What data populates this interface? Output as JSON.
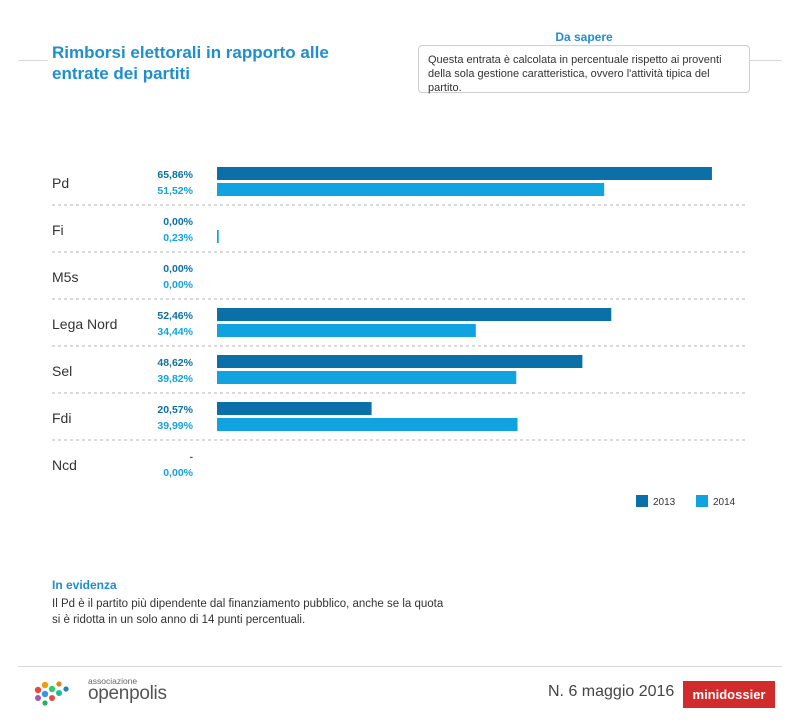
{
  "title": "Rimborsi elettorali in rapporto alle entrate dei partiti",
  "info": {
    "title": "Da sapere",
    "text": "Questa entrata è calcolata in percentuale rispetto ai proventi della sola gestione caratteristica, ovvero l'attività tipica del partito."
  },
  "colors": {
    "2013": "#0c70a8",
    "2014": "#11a3e0",
    "accent": "#1f8ecf",
    "badge": "#d22b2b"
  },
  "chart_data": {
    "type": "bar",
    "orientation": "horizontal",
    "categories": [
      "Pd",
      "Fi",
      "M5s",
      "Lega Nord",
      "Sel",
      "Fdi",
      "Ncd"
    ],
    "series": [
      {
        "name": "2013",
        "values": [
          65.86,
          0.0,
          0.0,
          52.46,
          48.62,
          20.57,
          null
        ],
        "labels": [
          "65,86%",
          "0,00%",
          "0,00%",
          "52,46%",
          "48,62%",
          "20,57%",
          "-"
        ]
      },
      {
        "name": "2014",
        "values": [
          51.52,
          0.23,
          0.0,
          34.44,
          39.82,
          39.99,
          0.0
        ],
        "labels": [
          "51,52%",
          "0,23%",
          "0,00%",
          "34,44%",
          "39,82%",
          "39,99%",
          "0,00%"
        ]
      }
    ],
    "xlim": [
      0,
      66
    ],
    "legend": "bottom-right"
  },
  "evidenza": {
    "title": "In evidenza",
    "text_line1": "Il Pd è il partito più dipendente dal finanziamento pubblico, anche se la quota",
    "text_line2": "si è ridotta in un solo anno di 14 punti percentuali."
  },
  "footer": {
    "logo_small": "associazione",
    "logo_big": "openpolis",
    "issue": "N. 6 maggio 2016",
    "badge": "minidossier"
  }
}
